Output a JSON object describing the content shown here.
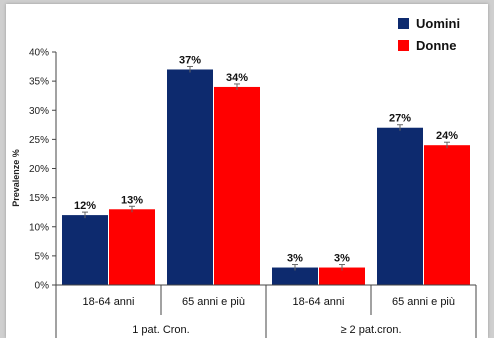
{
  "chart_data": {
    "type": "bar",
    "title": "",
    "ylabel": "Prevalenze %",
    "ylim": [
      0,
      40
    ],
    "yticks": [
      "0%",
      "5%",
      "10%",
      "15%",
      "20%",
      "25%",
      "30%",
      "35%",
      "40%"
    ],
    "categories": [
      "18-64 anni",
      "65 anni e più",
      "18-64 anni",
      "65 anni e più"
    ],
    "groups": [
      {
        "label": "1 pat. Cron."
      },
      {
        "label": "≥ 2 pat.cron."
      }
    ],
    "series": [
      {
        "name": "Uomini",
        "color": "#0d2a6e",
        "values": [
          12,
          37,
          3,
          27
        ],
        "labels": [
          "12%",
          "37%",
          "3%",
          "27%"
        ]
      },
      {
        "name": "Donne",
        "color": "#ff0000",
        "values": [
          13,
          34,
          3,
          24
        ],
        "labels": [
          "13%",
          "34%",
          "3%",
          "24%"
        ]
      }
    ],
    "legend_position": "top-right",
    "grid": false
  }
}
